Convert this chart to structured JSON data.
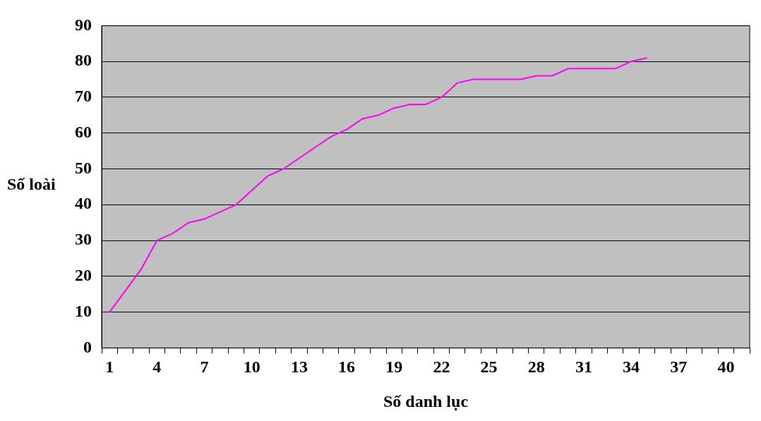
{
  "chart_data": {
    "type": "line",
    "xlabel": "Số danh lục",
    "ylabel": "Số loài",
    "categories": [
      "1",
      null,
      null,
      "4",
      null,
      null,
      "7",
      null,
      null,
      "10",
      null,
      null,
      "13",
      null,
      null,
      "16",
      null,
      null,
      "19",
      null,
      null,
      "22",
      null,
      null,
      "25",
      null,
      null,
      "28",
      null,
      null,
      "31",
      null,
      null,
      "34",
      null,
      null,
      "37",
      null,
      null,
      "40",
      null
    ],
    "series": [
      {
        "color": "#ff00ff",
        "values": [
          10,
          16,
          22,
          30,
          32,
          35,
          36,
          38,
          40,
          44,
          48,
          50,
          53,
          56,
          59,
          61,
          64,
          65,
          67,
          68,
          68,
          70,
          74,
          75,
          75,
          75,
          75,
          76,
          76,
          78,
          78,
          78,
          78,
          80,
          81,
          null,
          null,
          null,
          null,
          null,
          null
        ]
      }
    ],
    "ylim": [
      0,
      90
    ],
    "yticks": [
      0,
      10,
      20,
      30,
      40,
      50,
      60,
      70,
      80,
      90
    ],
    "grid": "y",
    "legend": false,
    "marker": "none",
    "line_style": "solid"
  }
}
